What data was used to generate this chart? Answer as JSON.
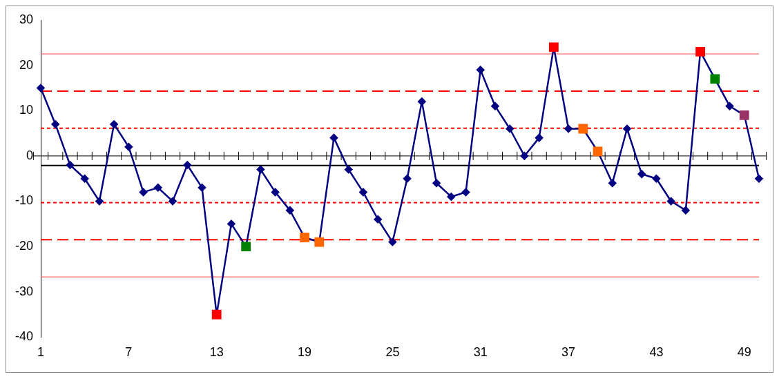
{
  "chart_data": {
    "type": "line",
    "categories": [
      "1",
      null,
      null,
      null,
      null,
      null,
      "7",
      null,
      null,
      null,
      null,
      null,
      "13",
      null,
      null,
      null,
      null,
      null,
      "19",
      null,
      null,
      null,
      null,
      null,
      "25",
      null,
      null,
      null,
      null,
      null,
      "31",
      null,
      null,
      null,
      null,
      null,
      "37",
      null,
      null,
      null,
      null,
      null,
      "43",
      null,
      null,
      null,
      null,
      null,
      "49",
      null
    ],
    "series": [
      {
        "color": "#000080",
        "marker": "diamond",
        "values": [
          15,
          7,
          -2,
          -5,
          -10,
          7,
          2,
          -8,
          -7,
          -10,
          -2,
          -7,
          -35,
          -15,
          -20,
          -3,
          -8,
          -12,
          -18,
          -19,
          4,
          -3,
          -8,
          -14,
          -19,
          -5,
          12,
          -6,
          -9,
          -8,
          19,
          11,
          6,
          0,
          4,
          24,
          6,
          6,
          1,
          -6,
          6,
          -4,
          -5,
          -10,
          -12,
          23,
          17,
          11,
          9,
          -5
        ],
        "colors": [
          "#000080",
          "#000080",
          "#000080",
          "#000080",
          "#000080",
          "#000080",
          "#000080",
          "#000080",
          "#000080",
          "#000080",
          "#000080",
          "#000080",
          "#ff0000",
          "#000080",
          "#008000",
          "#000080",
          "#000080",
          "#000080",
          "#ff6600",
          "#ff6600",
          "#000080",
          "#000080",
          "#000080",
          "#000080",
          "#000080",
          "#000080",
          "#000080",
          "#000080",
          "#000080",
          "#000080",
          "#000080",
          "#000080",
          "#000080",
          "#000080",
          "#000080",
          "#ff0000",
          "#000080",
          "#ff6600",
          "#ff6600",
          "#000080",
          "#000080",
          "#000080",
          "#000080",
          "#000080",
          "#000080",
          "#ff0000",
          "#008000",
          "#000080",
          "#993366",
          "#000080"
        ]
      }
    ],
    "ylim": [
      -40,
      30
    ],
    "yticks": [
      -40,
      -30,
      -20,
      -10,
      0,
      10,
      20,
      30
    ],
    "grid": false,
    "legend": false,
    "ref_lines": [
      {
        "axis": "y",
        "value": -2.1,
        "color": "#000000",
        "line_style": "solid"
      },
      {
        "axis": "y",
        "value": 6.1,
        "color": "#ff0000",
        "line_style": "dotted"
      },
      {
        "axis": "y",
        "value": -10.3,
        "color": "#ff0000",
        "line_style": "dotted"
      },
      {
        "axis": "y",
        "value": 14.3,
        "color": "#ff0000",
        "line_style": "dashed"
      },
      {
        "axis": "y",
        "value": -18.5,
        "color": "#ff0000",
        "line_style": "dashed"
      },
      {
        "axis": "y",
        "value": 22.5,
        "color": "#ff6666",
        "line_style": "solid"
      },
      {
        "axis": "y",
        "value": -26.7,
        "color": "#ff6666",
        "line_style": "solid"
      }
    ]
  }
}
